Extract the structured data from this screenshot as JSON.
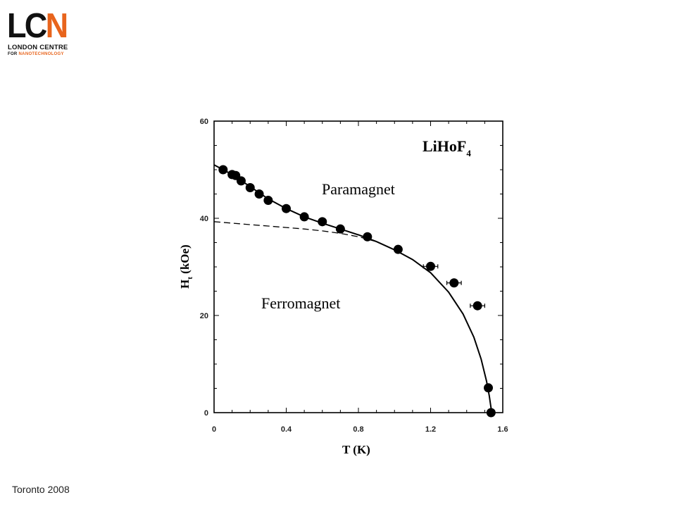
{
  "logo": {
    "letters_dark": "LC",
    "letters_accent": "N",
    "line1": "LONDON CENTRE",
    "line2_prefix": "FOR ",
    "line2_accent": "NANOTECHNOLOGY",
    "accent_color": "#e8641c"
  },
  "footer": {
    "text": "Toronto 2008"
  },
  "chart_data": {
    "type": "scatter",
    "title": "",
    "xlabel": "T (K)",
    "ylabel": "H",
    "ylabel_sub": "t",
    "ylabel_unit": " (kOe)",
    "xlim": [
      0,
      1.6
    ],
    "ylim": [
      0,
      60
    ],
    "xticks": [
      0,
      0.4,
      0.8,
      1.2,
      1.6
    ],
    "xtick_labels": [
      "0",
      "0.4",
      "0.8",
      "1.2",
      "1.6"
    ],
    "yticks": [
      0,
      20,
      40,
      60
    ],
    "ytick_labels": [
      "0",
      "20",
      "40",
      "60"
    ],
    "grid": false,
    "annotations": {
      "compound": "LiHoF",
      "compound_sub": "4",
      "upper_region": "Paramagnet",
      "lower_region": "Ferromagnet"
    },
    "series": [
      {
        "kind": "points",
        "points": [
          {
            "x": 0.05,
            "y": 50.0
          },
          {
            "x": 0.1,
            "y": 49.0
          },
          {
            "x": 0.12,
            "y": 48.8
          },
          {
            "x": 0.15,
            "y": 47.7
          },
          {
            "x": 0.2,
            "y": 46.3
          },
          {
            "x": 0.25,
            "y": 45.0
          },
          {
            "x": 0.3,
            "y": 43.7
          },
          {
            "x": 0.4,
            "y": 42.0
          },
          {
            "x": 0.5,
            "y": 40.3
          },
          {
            "x": 0.6,
            "y": 39.3
          },
          {
            "x": 0.7,
            "y": 37.8
          },
          {
            "x": 0.85,
            "y": 36.2
          },
          {
            "x": 1.02,
            "y": 33.6
          },
          {
            "x": 1.2,
            "y": 30.1,
            "xerr": 0.04
          },
          {
            "x": 1.33,
            "y": 26.7,
            "xerr": 0.04
          },
          {
            "x": 1.46,
            "y": 22.0,
            "xerr": 0.04
          },
          {
            "x": 1.52,
            "y": 5.1
          },
          {
            "x": 1.535,
            "y": 0.0
          }
        ]
      },
      {
        "kind": "solid-line",
        "x": [
          0.0,
          0.1,
          0.2,
          0.3,
          0.4,
          0.5,
          0.6,
          0.7,
          0.8,
          0.9,
          1.0,
          1.1,
          1.2,
          1.3,
          1.38,
          1.44,
          1.48,
          1.51,
          1.525,
          1.535,
          1.54
        ],
        "y": [
          51.0,
          49.0,
          46.5,
          44.0,
          42.0,
          40.3,
          39.0,
          37.8,
          36.6,
          35.2,
          33.5,
          31.5,
          28.8,
          24.8,
          20.3,
          15.5,
          11.0,
          6.5,
          3.5,
          1.0,
          0.0
        ]
      },
      {
        "kind": "dashed-line",
        "x": [
          0.0,
          0.1,
          0.2,
          0.3,
          0.4,
          0.5,
          0.6,
          0.7,
          0.8,
          0.9
        ],
        "y": [
          39.3,
          39.0,
          38.7,
          38.4,
          38.1,
          37.8,
          37.4,
          36.9,
          36.2,
          35.2
        ]
      }
    ]
  }
}
